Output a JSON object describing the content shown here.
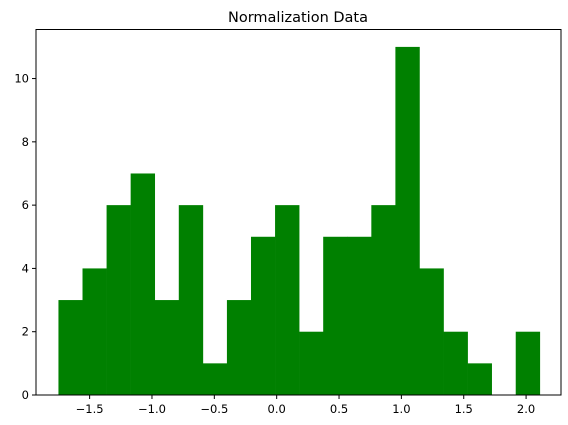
{
  "chart_data": {
    "type": "bar",
    "title": "Normalization Data",
    "xlabel": "",
    "ylabel": "",
    "bar_color": "#008000",
    "xlim": [
      -1.93,
      2.28
    ],
    "ylim": [
      0,
      11.55
    ],
    "bin_width": 0.193,
    "bins": [
      {
        "x0": -1.75,
        "value": 3
      },
      {
        "x0": -1.557,
        "value": 4
      },
      {
        "x0": -1.364,
        "value": 6
      },
      {
        "x0": -1.171,
        "value": 7
      },
      {
        "x0": -0.978,
        "value": 3
      },
      {
        "x0": -0.785,
        "value": 6
      },
      {
        "x0": -0.592,
        "value": 1
      },
      {
        "x0": -0.399,
        "value": 3
      },
      {
        "x0": -0.206,
        "value": 5
      },
      {
        "x0": -0.013,
        "value": 6
      },
      {
        "x0": 0.18,
        "value": 2
      },
      {
        "x0": 0.373,
        "value": 5
      },
      {
        "x0": 0.566,
        "value": 5
      },
      {
        "x0": 0.759,
        "value": 6
      },
      {
        "x0": 0.952,
        "value": 11
      },
      {
        "x0": 1.145,
        "value": 4
      },
      {
        "x0": 1.338,
        "value": 2
      },
      {
        "x0": 1.531,
        "value": 1
      },
      {
        "x0": 1.724,
        "value": 0
      },
      {
        "x0": 1.917,
        "value": 2
      }
    ],
    "x_ticks": [
      {
        "value": -1.5,
        "label": "−1.5"
      },
      {
        "value": -1.0,
        "label": "−1.0"
      },
      {
        "value": -0.5,
        "label": "−0.5"
      },
      {
        "value": 0.0,
        "label": "0.0"
      },
      {
        "value": 0.5,
        "label": "0.5"
      },
      {
        "value": 1.0,
        "label": "1.0"
      },
      {
        "value": 1.5,
        "label": "1.5"
      },
      {
        "value": 2.0,
        "label": "2.0"
      }
    ],
    "y_ticks": [
      {
        "value": 0,
        "label": "0"
      },
      {
        "value": 2,
        "label": "2"
      },
      {
        "value": 4,
        "label": "4"
      },
      {
        "value": 6,
        "label": "6"
      },
      {
        "value": 8,
        "label": "8"
      },
      {
        "value": 10,
        "label": "10"
      }
    ],
    "grid": false,
    "legend": "none"
  }
}
